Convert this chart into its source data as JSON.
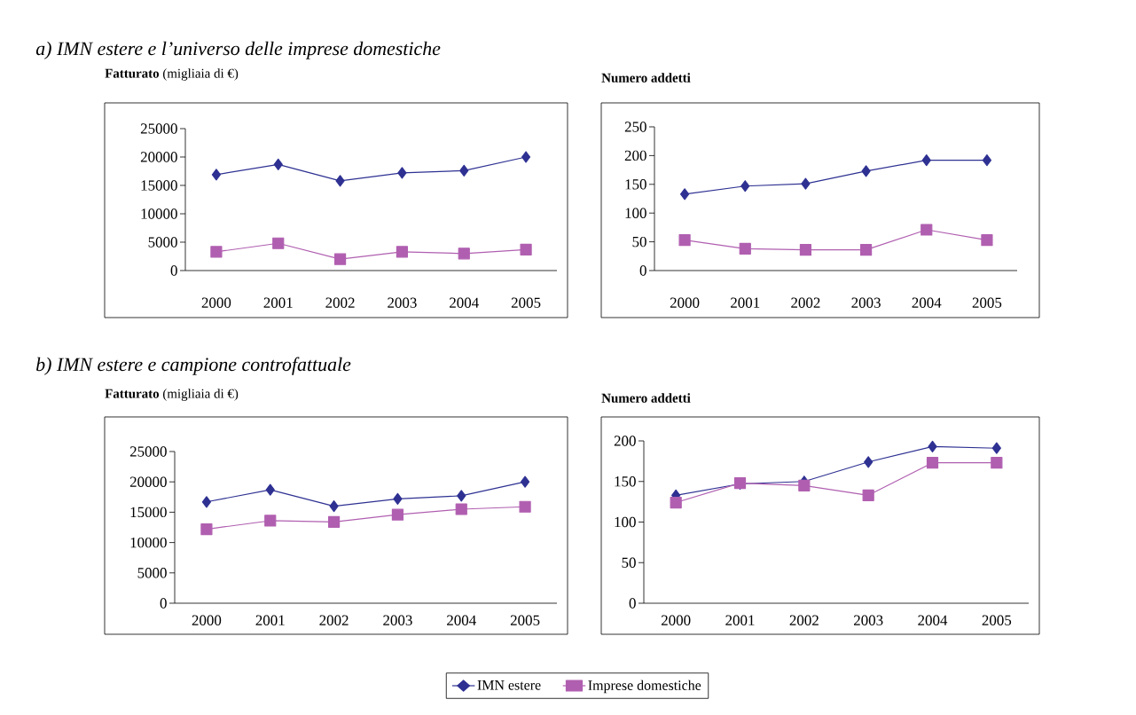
{
  "chart_data": [
    {
      "type": "line",
      "title": "**Fatturato** (migliaia di €)",
      "annotations": [
        "a) IMN estere e l’universo delle imprese domestiche"
      ],
      "categories": [
        "2000",
        "2001",
        "2002",
        "2003",
        "2004",
        "2005"
      ],
      "ylim": [
        0,
        25000
      ],
      "yticks": [
        0,
        5000,
        10000,
        15000,
        20000,
        25000
      ],
      "series": [
        {
          "color": "#2e3192",
          "marker": "diamond",
          "values": [
            16900,
            18700,
            15800,
            17200,
            17600,
            20000
          ]
        },
        {
          "color": "#b05fb0",
          "marker": "square",
          "values": [
            3300,
            4800,
            2000,
            3300,
            3000,
            3700
          ]
        }
      ]
    },
    {
      "type": "line",
      "title": "**Numero addetti**",
      "categories": [
        "2000",
        "2001",
        "2002",
        "2003",
        "2004",
        "2005"
      ],
      "ylim": [
        0,
        250
      ],
      "yticks": [
        0,
        50,
        100,
        150,
        200,
        250
      ],
      "series": [
        {
          "color": "#2e3192",
          "marker": "diamond",
          "values": [
            133,
            147,
            151,
            173,
            192,
            192
          ]
        },
        {
          "color": "#b05fb0",
          "marker": "square",
          "values": [
            53,
            38,
            36,
            36,
            71,
            53
          ]
        }
      ]
    },
    {
      "type": "line",
      "title": "**Fatturato** (migliaia di €)",
      "annotations": [
        "b) IMN estere e campione controfattuale"
      ],
      "categories": [
        "2000",
        "2001",
        "2002",
        "2003",
        "2004",
        "2005"
      ],
      "ylim": [
        0,
        25000
      ],
      "yticks": [
        0,
        5000,
        10000,
        15000,
        20000,
        25000
      ],
      "series": [
        {
          "color": "#2e3192",
          "marker": "diamond",
          "values": [
            16700,
            18700,
            16000,
            17200,
            17700,
            20000
          ]
        },
        {
          "color": "#b05fb0",
          "marker": "square",
          "values": [
            12200,
            13600,
            13400,
            14600,
            15500,
            15900
          ]
        }
      ]
    },
    {
      "type": "line",
      "title": "**Numero addetti**",
      "categories": [
        "2000",
        "2001",
        "2002",
        "2003",
        "2004",
        "2005"
      ],
      "ylim": [
        0,
        200
      ],
      "yticks": [
        0,
        50,
        100,
        150,
        200
      ],
      "legend": "bottom",
      "series": [
        {
          "name": "IMN estere",
          "color": "#2e3192",
          "marker": "diamond",
          "values": [
            133,
            147,
            150,
            174,
            193,
            191
          ]
        },
        {
          "name": "Imprese domestiche",
          "color": "#b05fb0",
          "marker": "square",
          "values": [
            124,
            148,
            145,
            133,
            173,
            173
          ]
        }
      ]
    }
  ]
}
